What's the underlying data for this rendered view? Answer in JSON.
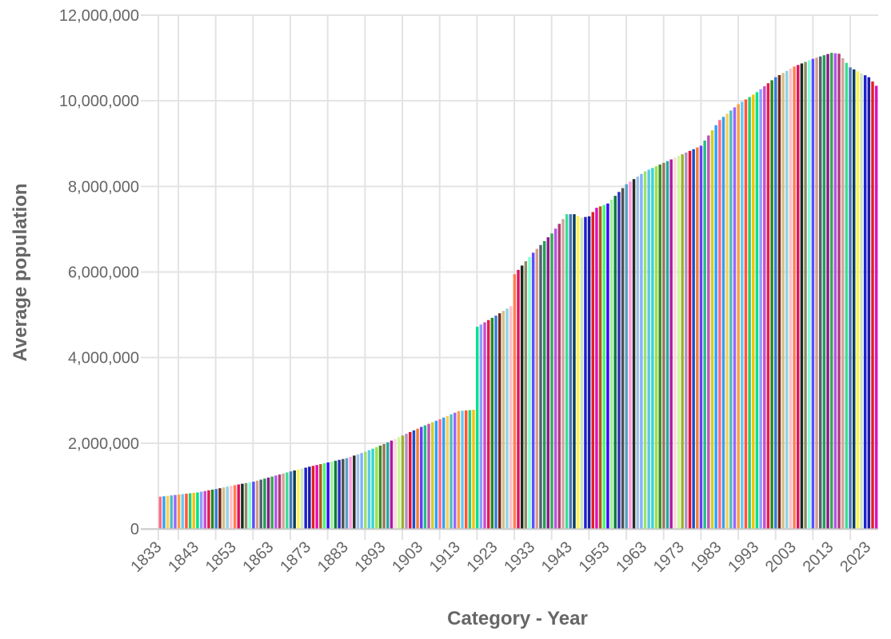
{
  "chart_data": {
    "type": "bar",
    "title": "",
    "xlabel": "Category - Year",
    "ylabel": "Average population",
    "ylim": [
      0,
      12000000
    ],
    "yticks": [
      0,
      2000000,
      4000000,
      6000000,
      8000000,
      10000000,
      12000000
    ],
    "ytick_labels": [
      "0",
      "2,000,000",
      "4,000,000",
      "6,000,000",
      "8,000,000",
      "10,000,000",
      "12,000,000"
    ],
    "xtick_labels": [
      "1833",
      "1843",
      "1853",
      "1863",
      "1873",
      "1883",
      "1893",
      "1903",
      "1913",
      "1923",
      "1933",
      "1943",
      "1953",
      "1963",
      "1973",
      "1983",
      "1993",
      "2003",
      "2013",
      "2023"
    ],
    "grid": true,
    "legend": "none",
    "x_start": 1833,
    "x_end": 2025,
    "anchors": [
      [
        1833,
        750000
      ],
      [
        1838,
        800000
      ],
      [
        1843,
        850000
      ],
      [
        1848,
        930000
      ],
      [
        1853,
        1020000
      ],
      [
        1858,
        1100000
      ],
      [
        1863,
        1220000
      ],
      [
        1868,
        1340000
      ],
      [
        1873,
        1450000
      ],
      [
        1878,
        1550000
      ],
      [
        1883,
        1650000
      ],
      [
        1888,
        1800000
      ],
      [
        1893,
        1980000
      ],
      [
        1898,
        2180000
      ],
      [
        1903,
        2380000
      ],
      [
        1908,
        2560000
      ],
      [
        1913,
        2750000
      ],
      [
        1917,
        2780000
      ],
      [
        1918,
        4720000
      ],
      [
        1923,
        4980000
      ],
      [
        1927,
        5200000
      ],
      [
        1928,
        5950000
      ],
      [
        1933,
        6450000
      ],
      [
        1938,
        6900000
      ],
      [
        1942,
        7350000
      ],
      [
        1944,
        7350000
      ],
      [
        1946,
        7270000
      ],
      [
        1948,
        7300000
      ],
      [
        1950,
        7500000
      ],
      [
        1953,
        7600000
      ],
      [
        1958,
        8050000
      ],
      [
        1963,
        8350000
      ],
      [
        1968,
        8550000
      ],
      [
        1973,
        8750000
      ],
      [
        1978,
        8950000
      ],
      [
        1983,
        9550000
      ],
      [
        1988,
        9920000
      ],
      [
        1993,
        10200000
      ],
      [
        1998,
        10550000
      ],
      [
        2003,
        10800000
      ],
      [
        2008,
        10980000
      ],
      [
        2013,
        11120000
      ],
      [
        2015,
        11100000
      ],
      [
        2018,
        10780000
      ],
      [
        2023,
        10550000
      ],
      [
        2025,
        10350000
      ]
    ],
    "colors": [
      "#ff6b8a",
      "#36a2eb",
      "#ffce56",
      "#4bc0c0",
      "#9966ff",
      "#ff9f40",
      "#67c8f5",
      "#ff5733",
      "#2ecc71",
      "#f1c40f",
      "#00e28a",
      "#8e9cff",
      "#c84fd1",
      "#e6194b",
      "#228b22",
      "#3a7bd5",
      "#6b2a1a",
      "#d6c08a",
      "#8fd3e6",
      "#ffc0cb",
      "#ff7f50",
      "#e0115f",
      "#1b2a1b",
      "#8a8f6a",
      "#7fffd4",
      "#5b4bff",
      "#d2a08c",
      "#556070",
      "#1f9d55",
      "#8b1a8b",
      "#3aa655",
      "#b455e6",
      "#b03a7a",
      "#d4a59a",
      "#3ddc97",
      "#4a78b8",
      "#0b3d5c",
      "#fff34a",
      "#cde8c2",
      "#2020d0",
      "#1a1aaa",
      "#e02020",
      "#e010c0",
      "#b35a1a",
      "#40ff70",
      "#3a00ff",
      "#98f598",
      "#0a7a3a",
      "#2f2fbf",
      "#4f4f4f",
      "#5aa0c0",
      "#ff9be0",
      "#2a2a2a",
      "#9ec2e8",
      "#7fb3ff",
      "#a0e06a",
      "#5bcbe0",
      "#36d6d6",
      "#9de04a",
      "#3d8a2a",
      "#96785a",
      "#2aa8a0",
      "#b01aa0",
      "#ffd6e0",
      "#c9f79a",
      "#9ab030",
      "#b090c0",
      "#e0103a",
      "#1a4fd0",
      "#f08030",
      "#6a3aff",
      "#20c080",
      "#c050c0",
      "#d0d020",
      "#30a0ff"
    ]
  }
}
